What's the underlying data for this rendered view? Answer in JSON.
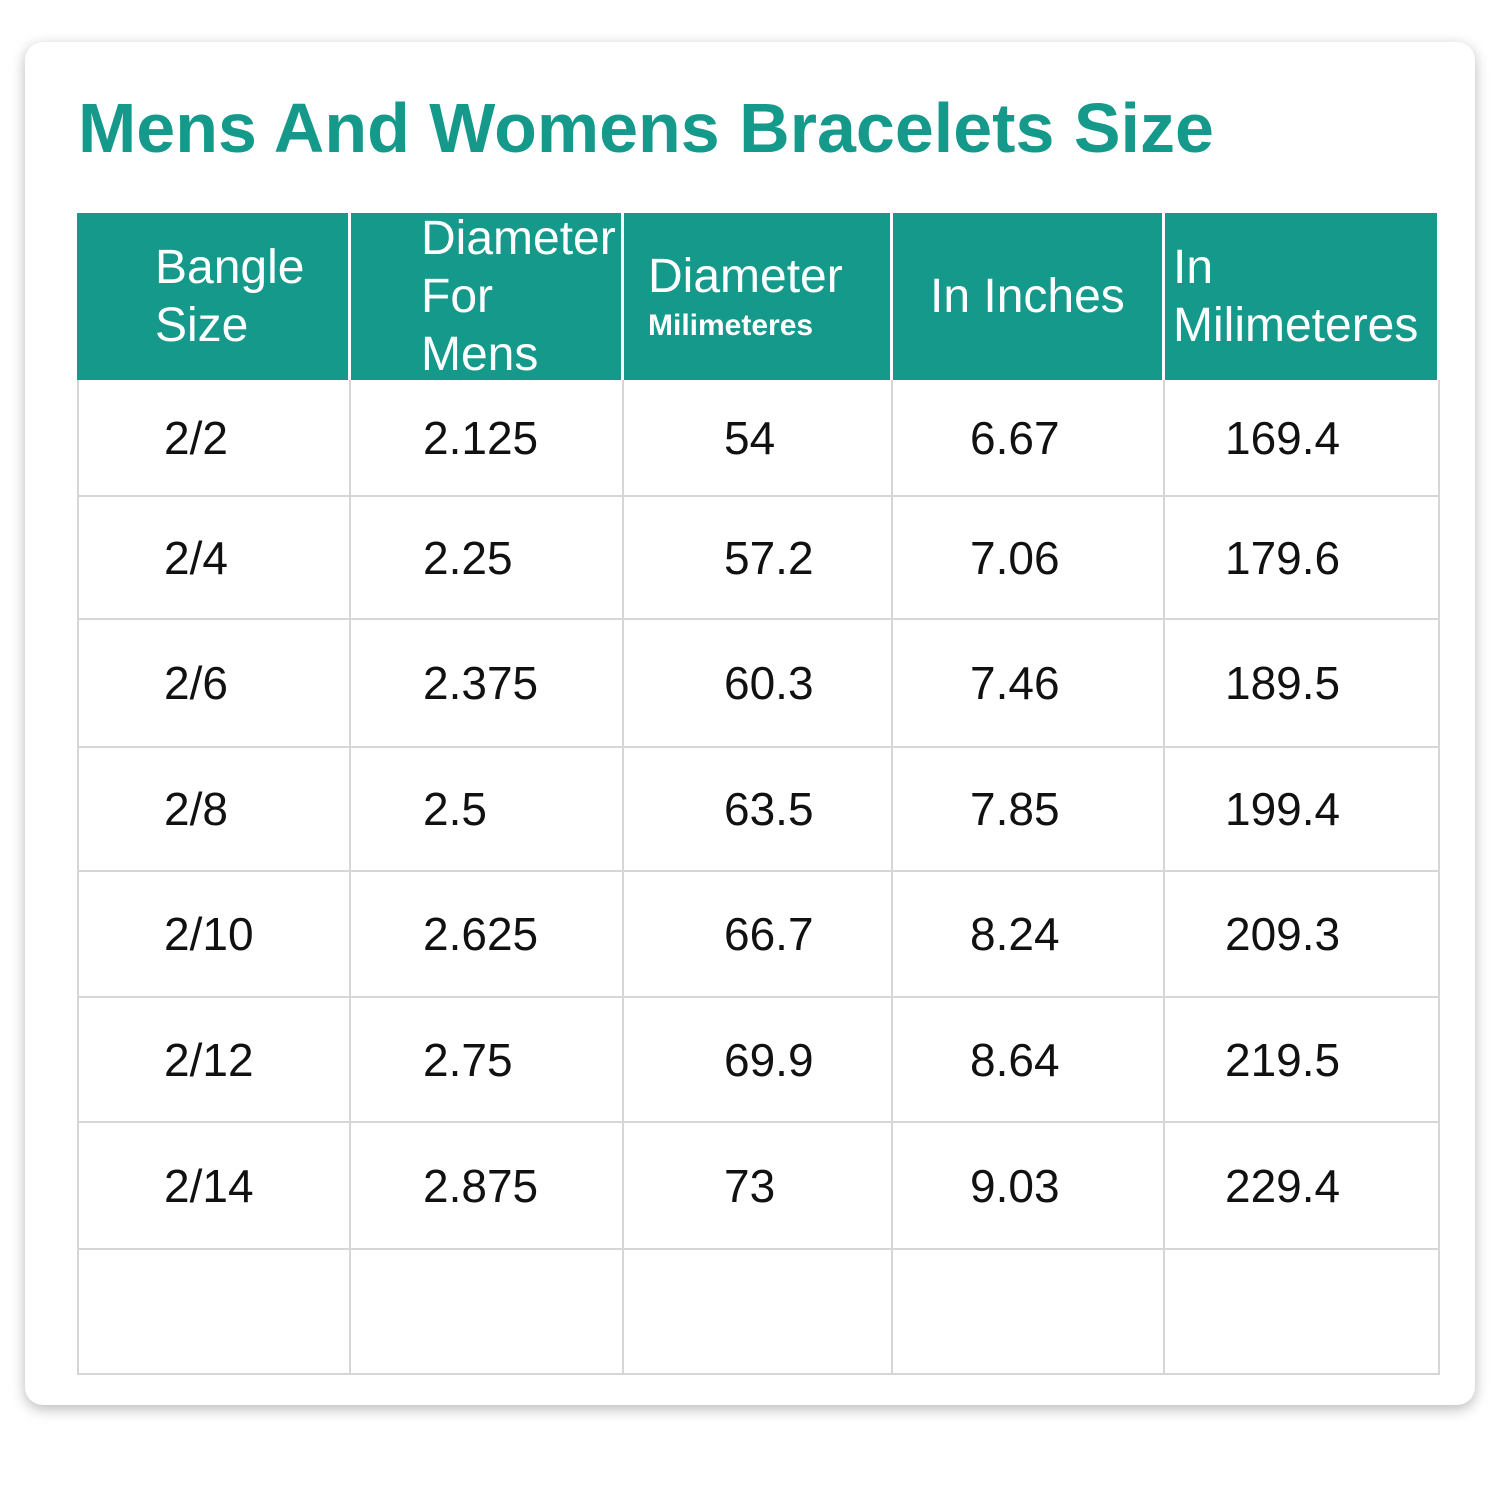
{
  "title": "Mens And Womens Bracelets Size",
  "table": {
    "headers": [
      [
        "Bangle",
        "Size"
      ],
      [
        "Diameter",
        "For Mens"
      ],
      [
        "Diameter",
        "Milimeteres"
      ],
      [
        "In Inches"
      ],
      [
        "In",
        "Milimeteres"
      ]
    ],
    "rows": [
      [
        "2/2",
        2.125,
        54,
        6.67,
        169.4
      ],
      [
        "2/4",
        2.25,
        57.2,
        7.06,
        179.6
      ],
      [
        "2/6",
        2.375,
        60.3,
        7.46,
        189.5
      ],
      [
        "2/8",
        2.5,
        63.5,
        7.85,
        199.4
      ],
      [
        "2/10",
        2.625,
        66.7,
        8.24,
        209.3
      ],
      [
        "2/12",
        2.75,
        69.9,
        8.64,
        219.5
      ],
      [
        "2/14",
        2.875,
        73,
        9.03,
        229.4
      ]
    ]
  }
}
